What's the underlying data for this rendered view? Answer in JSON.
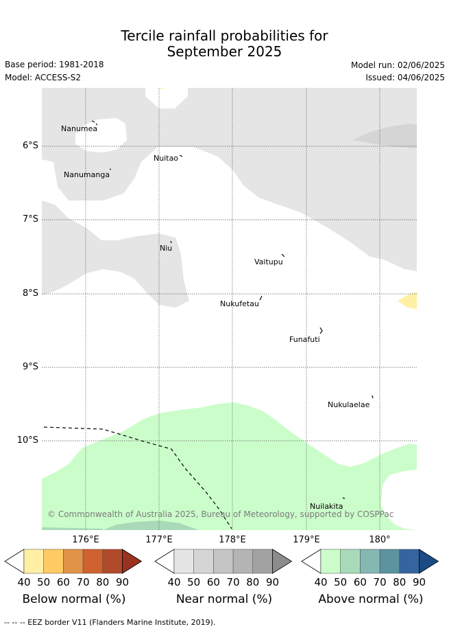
{
  "title_line1": "Tercile rainfall probabilities for",
  "title_line2": "September 2025",
  "base_period": "Base period: 1981-2018",
  "model": "Model: ACCESS-S2",
  "model_run": "Model run: 02/06/2025",
  "issued": "Issued: 04/06/2025",
  "lat_labels": [
    "6°S",
    "7°S",
    "8°S",
    "9°S",
    "10°S"
  ],
  "lon_labels": [
    "176°E",
    "177°E",
    "178°E",
    "179°E",
    "180°"
  ],
  "places": {
    "nanumea": "Nanumea",
    "nuitao": "Nuitao",
    "nanumanga": "Nanumanga",
    "niu": "Niu",
    "vaitupu": "Vaitupu",
    "nukufetau": "Nukufetau",
    "funafuti": "Funafuti",
    "nukulaelae": "Nukulaelae",
    "nuilakita": "Nuilakita"
  },
  "copyright": "© Commonwealth of Australia 2025, Bureau of Meteorology, supported by COSPPac",
  "colorbars": [
    {
      "title": "Below normal (%)",
      "ticks": [
        "40",
        "50",
        "60",
        "70",
        "80",
        "90"
      ],
      "colors": [
        "#fff0a6",
        "#fecb65",
        "#e19348",
        "#d0622f",
        "#b04a2b",
        "#99321e"
      ]
    },
    {
      "title": "Near normal (%)",
      "ticks": [
        "40",
        "50",
        "60",
        "70",
        "80",
        "90"
      ],
      "colors": [
        "#e5e5e5",
        "#d5d5d5",
        "#c5c5c5",
        "#b4b4b4",
        "#a2a2a2",
        "#8c8c8c"
      ]
    },
    {
      "title": "Above normal (%)",
      "ticks": [
        "40",
        "50",
        "60",
        "70",
        "80",
        "90"
      ],
      "colors": [
        "#cbfdcb",
        "#a8dab9",
        "#85b8b3",
        "#5b93a0",
        "#34659e",
        "#1b4a85"
      ]
    }
  ],
  "eez_note": "-- -- -- EEZ border V11 (Flanders Marine Institute, 2019)."
}
